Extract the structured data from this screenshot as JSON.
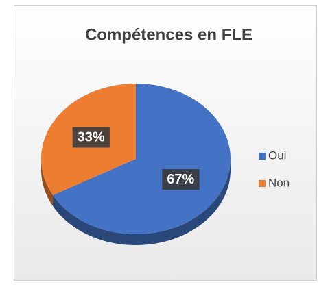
{
  "chart_data": {
    "type": "pie",
    "title": "Compétences en FLE",
    "categories": [
      "Oui",
      "Non"
    ],
    "values": [
      67,
      33
    ],
    "value_labels": [
      "67%",
      "33%"
    ],
    "colors": [
      "#4472c4",
      "#ed7d31"
    ],
    "legend": "right"
  }
}
